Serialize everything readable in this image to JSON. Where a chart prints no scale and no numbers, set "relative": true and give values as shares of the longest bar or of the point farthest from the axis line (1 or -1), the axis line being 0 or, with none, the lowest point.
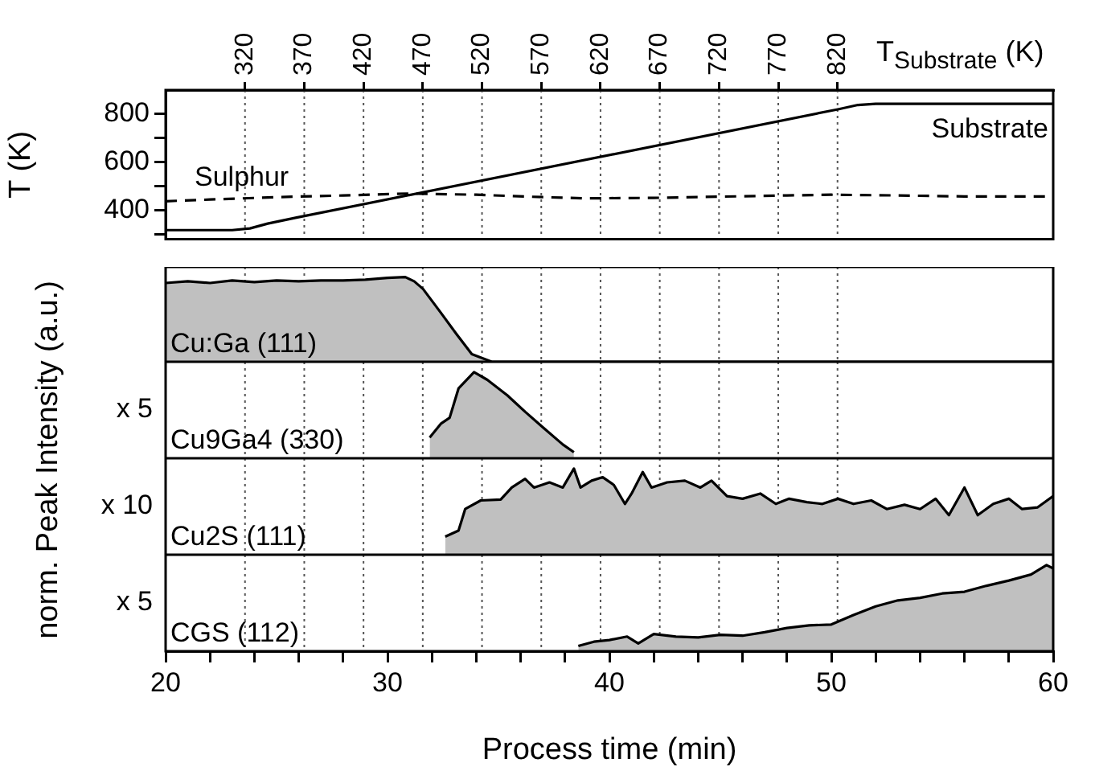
{
  "chart_data": [
    {
      "type": "line",
      "xlim": [
        20,
        60
      ],
      "x2lim": [
        253,
        1002
      ],
      "x2label": "T$_{Substrate}$ (K)",
      "ylabel": "T (K)",
      "ylim": [
        280,
        900
      ],
      "grid": "x2",
      "tick_labels": "y",
      "x2ticks": [
        320,
        370,
        420,
        470,
        520,
        570,
        620,
        670,
        720,
        770,
        820
      ],
      "yticks": [
        {
          "value": 300,
          "label": null
        },
        400,
        {
          "value": 500,
          "label": null
        },
        600,
        {
          "value": 700,
          "label": null
        },
        800
      ],
      "series": [
        {
          "name": "Substrate",
          "color": "#000000",
          "line_style": "solid",
          "x": [
            20,
            23,
            23.8,
            24.6,
            25.9,
            50.3,
            51.2,
            52,
            60
          ],
          "values": [
            318,
            318,
            325,
            345,
            370,
            820,
            838,
            843,
            843
          ]
        },
        {
          "name": "Sulphur",
          "color": "#000000",
          "line_style": "dashed",
          "x": [
            20,
            22,
            25,
            28,
            31,
            34,
            37,
            39,
            42,
            45,
            48,
            50,
            53,
            56,
            60
          ],
          "values": [
            438,
            445,
            455,
            462,
            470,
            465,
            455,
            450,
            452,
            457,
            462,
            465,
            462,
            458,
            458
          ]
        }
      ]
    },
    {
      "type": "area",
      "relative": true,
      "xlim": [
        20,
        60
      ],
      "grid": "x2",
      "tick_labels": false,
      "ylabel": "norm. Peak Intensity (a.u.)",
      "series": [
        {
          "name": "Cu:Ga (111)",
          "color": "#c0c0c0",
          "x": [
            20,
            21,
            22,
            23,
            24,
            25,
            26,
            27,
            28,
            29,
            30,
            30.8,
            31.2,
            31.6,
            32.4,
            33.1,
            33.8,
            34.7,
            60
          ],
          "values": [
            0.93,
            0.95,
            0.93,
            0.96,
            0.94,
            0.96,
            0.95,
            0.96,
            0.96,
            0.97,
            0.99,
            1,
            0.95,
            0.86,
            0.58,
            0.33,
            0.09,
            0,
            0
          ]
        }
      ]
    },
    {
      "type": "area",
      "relative": true,
      "xlim": [
        20,
        60
      ],
      "grid": "x2",
      "tick_labels": false,
      "annotations": [
        "x 5"
      ],
      "series": [
        {
          "name": "Cu9Ga4 (330)",
          "color": "#c0c0c0",
          "x": [
            31.9,
            32.4,
            32.8,
            33.2,
            33.9,
            34.5,
            35.4,
            36.2,
            37,
            37.9,
            38.4
          ],
          "values": [
            0.24,
            0.4,
            0.47,
            0.81,
            1,
            0.91,
            0.73,
            0.54,
            0.36,
            0.16,
            0.07
          ]
        }
      ]
    },
    {
      "type": "area",
      "relative": true,
      "xlim": [
        20,
        60
      ],
      "grid": "x2",
      "tick_labels": false,
      "annotations": [
        "x 10"
      ],
      "series": [
        {
          "name": "Cu2S (111)",
          "color": "#c0c0c0",
          "x": [
            32.6,
            33.2,
            33.5,
            34.2,
            35.1,
            35.6,
            36.2,
            36.6,
            37.3,
            37.9,
            38.4,
            38.7,
            39.2,
            39.7,
            40.2,
            40.7,
            41,
            41.5,
            41.9,
            42.6,
            43.4,
            44.1,
            44.6,
            45.3,
            46,
            46.8,
            47.5,
            48.1,
            48.9,
            49.6,
            50.3,
            51,
            51.8,
            52.5,
            53.3,
            54,
            54.7,
            55.3,
            56,
            56.6,
            57.3,
            58,
            58.6,
            59.3,
            60
          ],
          "values": [
            0.21,
            0.28,
            0.53,
            0.63,
            0.64,
            0.78,
            0.88,
            0.78,
            0.84,
            0.78,
            1,
            0.78,
            0.86,
            0.9,
            0.81,
            0.59,
            0.71,
            0.96,
            0.78,
            0.84,
            0.86,
            0.78,
            0.86,
            0.68,
            0.65,
            0.71,
            0.59,
            0.65,
            0.61,
            0.59,
            0.65,
            0.59,
            0.63,
            0.53,
            0.58,
            0.53,
            0.65,
            0.46,
            0.78,
            0.46,
            0.59,
            0.65,
            0.53,
            0.55,
            0.68
          ]
        }
      ]
    },
    {
      "type": "area",
      "relative": true,
      "xlim": [
        20,
        60
      ],
      "grid": "x2",
      "tick_labels": "x",
      "xlabel": "Process time (min)",
      "annotations": [
        "x 5"
      ],
      "xticks": [
        20,
        {
          "value": 22,
          "label": null
        },
        {
          "value": 24,
          "label": null
        },
        {
          "value": 26,
          "label": null
        },
        {
          "value": 28,
          "label": null
        },
        30,
        {
          "value": 32,
          "label": null
        },
        {
          "value": 34,
          "label": null
        },
        {
          "value": 36,
          "label": null
        },
        {
          "value": 38,
          "label": null
        },
        40,
        {
          "value": 42,
          "label": null
        },
        {
          "value": 44,
          "label": null
        },
        {
          "value": 46,
          "label": null
        },
        {
          "value": 48,
          "label": null
        },
        50,
        {
          "value": 52,
          "label": null
        },
        {
          "value": 54,
          "label": null
        },
        {
          "value": 56,
          "label": null
        },
        {
          "value": 58,
          "label": null
        },
        60
      ],
      "series": [
        {
          "name": "CGS (112)",
          "color": "#c0c0c0",
          "x": [
            38.6,
            39.3,
            40,
            40.8,
            41.3,
            42,
            43,
            44,
            45,
            46,
            47,
            48,
            49,
            50,
            51,
            52,
            53,
            54,
            55,
            56,
            57,
            58,
            59,
            59.7,
            60
          ],
          "values": [
            0.06,
            0.11,
            0.13,
            0.17,
            0.09,
            0.2,
            0.17,
            0.16,
            0.19,
            0.18,
            0.22,
            0.27,
            0.3,
            0.31,
            0.42,
            0.52,
            0.59,
            0.62,
            0.67,
            0.69,
            0.76,
            0.82,
            0.89,
            1,
            0.96
          ]
        }
      ]
    }
  ]
}
